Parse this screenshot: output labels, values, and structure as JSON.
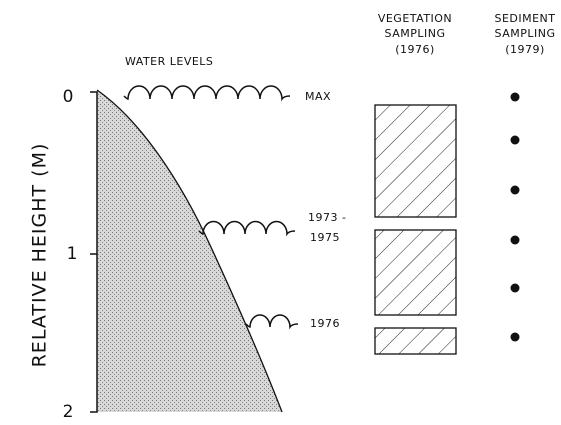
{
  "header": {
    "water_levels": "WATER LEVELS",
    "vegetation": [
      "VEGETATION",
      "SAMPLING",
      "(1976)"
    ],
    "sediment": [
      "SEDIMENT",
      "SAMPLING",
      "(1979)"
    ]
  },
  "axis": {
    "label": "RELATIVE HEIGHT (M)",
    "ticks": [
      "0",
      "1",
      "2"
    ]
  },
  "levels": [
    "MAX",
    "1973 -",
    "1975",
    "1976"
  ]
}
